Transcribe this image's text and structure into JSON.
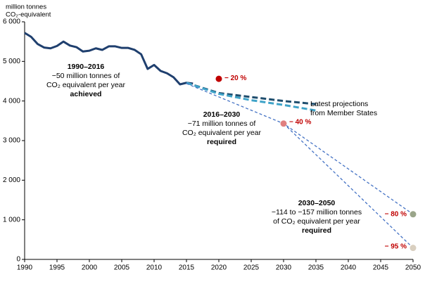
{
  "chart_data": {
    "type": "line",
    "y_label": [
      "million  tonnes",
      "CO₂-equivalent"
    ],
    "xlim": [
      1990,
      2050
    ],
    "xticks": [
      1990,
      1995,
      2000,
      2005,
      2010,
      2015,
      2020,
      2025,
      2030,
      2035,
      2040,
      2045,
      2050
    ],
    "ylim": [
      0,
      6000
    ],
    "yticks": [
      0,
      {
        "value": 1000,
        "label": "1 000"
      },
      {
        "value": 2000,
        "label": "2 000"
      },
      {
        "value": 3000,
        "label": "3 000"
      },
      {
        "value": 4000,
        "label": "4 000"
      },
      {
        "value": 5000,
        "label": "5 000"
      },
      {
        "value": 6000,
        "label": "6 000"
      }
    ],
    "grid": false,
    "series": [
      {
        "color": "#1f3f6e",
        "dashed": false,
        "x": [
          1990,
          1991,
          1992,
          1993,
          1994,
          1995,
          1996,
          1997,
          1998,
          1999,
          2000,
          2001,
          2002,
          2003,
          2004,
          2005,
          2006,
          2007,
          2008,
          2009,
          2010,
          2011,
          2012,
          2013,
          2014,
          2015,
          2016
        ],
        "values": [
          5720,
          5620,
          5440,
          5350,
          5330,
          5390,
          5500,
          5400,
          5360,
          5250,
          5270,
          5330,
          5290,
          5380,
          5380,
          5340,
          5340,
          5290,
          5180,
          4810,
          4910,
          4760,
          4700,
          4600,
          4420,
          4460,
          4440
        ]
      },
      {
        "name": "Latest projections from Member States",
        "color": "#1f4e6e",
        "dashed": true,
        "x": [
          2015,
          2020,
          2025,
          2030,
          2035
        ],
        "values": [
          4460,
          4200,
          4100,
          4000,
          3920
        ]
      },
      {
        "color": "#3fa3c8",
        "dashed": true,
        "x": [
          2015,
          2020,
          2025,
          2030,
          2035
        ],
        "values": [
          4460,
          4180,
          4020,
          3900,
          3760
        ]
      },
      {
        "color": "#4472c4",
        "dashed": true,
        "thin": true,
        "x": [
          2015,
          2030,
          2050
        ],
        "values": [
          4440,
          3430,
          1140
        ]
      },
      {
        "color": "#4472c4",
        "dashed": true,
        "thin": true,
        "x": [
          2030,
          2050
        ],
        "values": [
          3430,
          290
        ]
      }
    ],
    "targets": {
      "x": [
        2020,
        2030,
        2050,
        2050
      ],
      "values": [
        4560,
        3430,
        1140,
        290
      ],
      "colors": [
        "#c00000",
        "#e08080",
        "#9aa58a",
        "#d9cfc0"
      ],
      "labels": [
        "− 20 %",
        "− 40 %",
        "− 80 %",
        "− 95 %"
      ],
      "label_color": "#c00000"
    },
    "annotations": [
      [
        "1990–2016",
        "−50 million tonnes of",
        "CO₂ equivalent per year",
        "achieved"
      ],
      [
        "2016–2030",
        "−71 million tonnes of",
        "CO₂ equivalent per year",
        "required"
      ],
      [
        "2030–2050",
        "−114 to −157 million tonnes",
        "of CO₂ equivalent per year",
        "required"
      ]
    ]
  }
}
